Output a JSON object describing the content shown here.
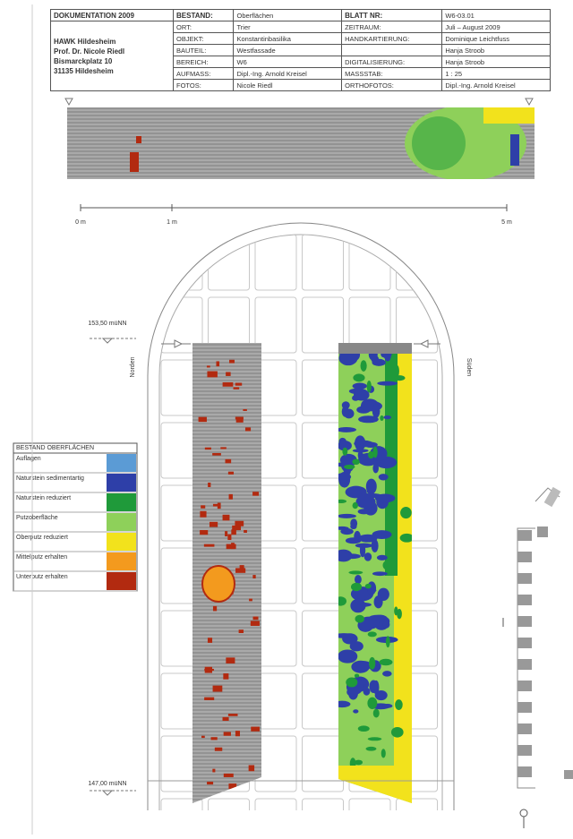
{
  "header": {
    "project": "DOKUMENTATION 2009",
    "institution": [
      "HAWK Hildesheim",
      "Prof. Dr. Nicole Riedl",
      "Bismarckplatz 10",
      "31135 Hildesheim"
    ],
    "left_fields": [
      {
        "label": "BESTAND:",
        "value": "Oberflächen"
      },
      {
        "label": "ORT:",
        "value": "Trier"
      },
      {
        "label": "OBJEKT:",
        "value": "Konstantinbasilika"
      },
      {
        "label": "BAUTEIL:",
        "value": "Westfassade"
      },
      {
        "label": "BEREICH:",
        "value": "W6"
      },
      {
        "label": "AUFMASS:",
        "value": "Dipl.-Ing. Arnold Kreisel"
      },
      {
        "label": "FOTOS:",
        "value": "Nicole Riedl"
      }
    ],
    "right_fields": [
      {
        "label": "BLATT NR:",
        "value": "W6-03.01"
      },
      {
        "label": "ZEITRAUM:",
        "value": "Juli – August 2009"
      },
      {
        "label": "HANDKARTIERUNG:",
        "value": "Dominique Leichtfuss"
      },
      {
        "value": "Hanja Stroob"
      },
      {
        "label": "DIGITALISIERUNG:",
        "value": "Hanja Stroob"
      },
      {
        "label": "MASSSTAB:",
        "value": "1 : 25"
      },
      {
        "label": "ORTHOFOTOS:",
        "value": "Dipl.-Ing. Arnold Kreisel"
      }
    ]
  },
  "scale": [
    "0 m",
    "1 m",
    "5 m"
  ],
  "heights": [
    "153,50 müNN",
    "147,00 müNN"
  ],
  "orientation": [
    "Norden",
    "Süden"
  ],
  "legend": {
    "title": "BESTAND OBERFLÄCHEN",
    "items": [
      {
        "label": "Auflagen",
        "color": "#5b9bd5"
      },
      {
        "label": "Naturstein sedimentartig",
        "color": "#2e3fa8"
      },
      {
        "label": "Naturstein reduziert",
        "color": "#1f9a3a"
      },
      {
        "label": "Putzoberfläche",
        "color": "#8ed05a"
      },
      {
        "label": "Oberputz reduziert",
        "color": "#f2e21c"
      },
      {
        "label": "Mittelputz erhalten",
        "color": "#f39a1e"
      },
      {
        "label": "Unterputz erhalten",
        "color": "#b22a10"
      }
    ]
  }
}
